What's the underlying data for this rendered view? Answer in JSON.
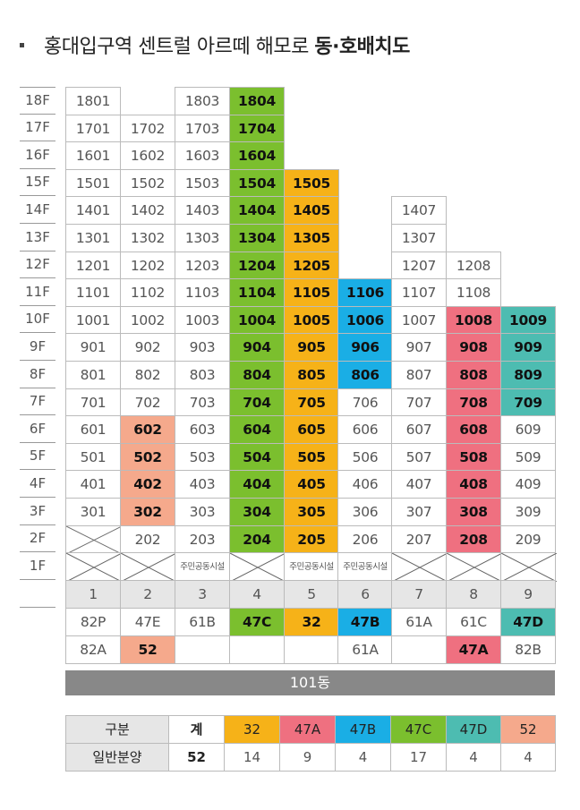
{
  "title": {
    "prefix": "홍대입구역 센트럴 아르떼 해모로 ",
    "bold": "동·호배치도"
  },
  "colors": {
    "c47C": "#7bbf2e",
    "c32": "#f6b218",
    "c47B": "#1aaee5",
    "c47A": "#ef7080",
    "c47D": "#4dbcb1",
    "c52": "#f5a98c",
    "gray": "#e6e6e6",
    "bar": "#888888"
  },
  "floors": [
    "18F",
    "17F",
    "16F",
    "15F",
    "14F",
    "13F",
    "12F",
    "11F",
    "10F",
    "9F",
    "8F",
    "7F",
    "6F",
    "5F",
    "4F",
    "3F",
    "2F",
    "1F"
  ],
  "grid": [
    [
      {
        "t": "1801"
      },
      null,
      {
        "t": "1803"
      },
      {
        "t": "1804",
        "c": "c47C"
      },
      null,
      null,
      null,
      null,
      null
    ],
    [
      {
        "t": "1701"
      },
      {
        "t": "1702"
      },
      {
        "t": "1703"
      },
      {
        "t": "1704",
        "c": "c47C"
      },
      null,
      null,
      null,
      null,
      null
    ],
    [
      {
        "t": "1601"
      },
      {
        "t": "1602"
      },
      {
        "t": "1603"
      },
      {
        "t": "1604",
        "c": "c47C"
      },
      null,
      null,
      null,
      null,
      null
    ],
    [
      {
        "t": "1501"
      },
      {
        "t": "1502"
      },
      {
        "t": "1503"
      },
      {
        "t": "1504",
        "c": "c47C"
      },
      {
        "t": "1505",
        "c": "c32"
      },
      null,
      null,
      null,
      null
    ],
    [
      {
        "t": "1401"
      },
      {
        "t": "1402"
      },
      {
        "t": "1403"
      },
      {
        "t": "1404",
        "c": "c47C"
      },
      {
        "t": "1405",
        "c": "c32"
      },
      null,
      {
        "t": "1407"
      },
      null,
      null
    ],
    [
      {
        "t": "1301"
      },
      {
        "t": "1302"
      },
      {
        "t": "1303"
      },
      {
        "t": "1304",
        "c": "c47C"
      },
      {
        "t": "1305",
        "c": "c32"
      },
      null,
      {
        "t": "1307"
      },
      null,
      null
    ],
    [
      {
        "t": "1201"
      },
      {
        "t": "1202"
      },
      {
        "t": "1203"
      },
      {
        "t": "1204",
        "c": "c47C"
      },
      {
        "t": "1205",
        "c": "c32"
      },
      null,
      {
        "t": "1207"
      },
      {
        "t": "1208"
      },
      null
    ],
    [
      {
        "t": "1101"
      },
      {
        "t": "1102"
      },
      {
        "t": "1103"
      },
      {
        "t": "1104",
        "c": "c47C"
      },
      {
        "t": "1105",
        "c": "c32"
      },
      {
        "t": "1106",
        "c": "c47B"
      },
      {
        "t": "1107"
      },
      {
        "t": "1108"
      },
      null
    ],
    [
      {
        "t": "1001"
      },
      {
        "t": "1002"
      },
      {
        "t": "1003"
      },
      {
        "t": "1004",
        "c": "c47C"
      },
      {
        "t": "1005",
        "c": "c32"
      },
      {
        "t": "1006",
        "c": "c47B"
      },
      {
        "t": "1007"
      },
      {
        "t": "1008",
        "c": "c47A"
      },
      {
        "t": "1009",
        "c": "c47D"
      }
    ],
    [
      {
        "t": "901"
      },
      {
        "t": "902"
      },
      {
        "t": "903"
      },
      {
        "t": "904",
        "c": "c47C"
      },
      {
        "t": "905",
        "c": "c32"
      },
      {
        "t": "906",
        "c": "c47B"
      },
      {
        "t": "907"
      },
      {
        "t": "908",
        "c": "c47A"
      },
      {
        "t": "909",
        "c": "c47D"
      }
    ],
    [
      {
        "t": "801"
      },
      {
        "t": "802"
      },
      {
        "t": "803"
      },
      {
        "t": "804",
        "c": "c47C"
      },
      {
        "t": "805",
        "c": "c32"
      },
      {
        "t": "806",
        "c": "c47B"
      },
      {
        "t": "807"
      },
      {
        "t": "808",
        "c": "c47A"
      },
      {
        "t": "809",
        "c": "c47D"
      }
    ],
    [
      {
        "t": "701"
      },
      {
        "t": "702"
      },
      {
        "t": "703"
      },
      {
        "t": "704",
        "c": "c47C"
      },
      {
        "t": "705",
        "c": "c32"
      },
      {
        "t": "706"
      },
      {
        "t": "707"
      },
      {
        "t": "708",
        "c": "c47A"
      },
      {
        "t": "709",
        "c": "c47D"
      }
    ],
    [
      {
        "t": "601"
      },
      {
        "t": "602",
        "c": "c52"
      },
      {
        "t": "603"
      },
      {
        "t": "604",
        "c": "c47C"
      },
      {
        "t": "605",
        "c": "c32"
      },
      {
        "t": "606"
      },
      {
        "t": "607"
      },
      {
        "t": "608",
        "c": "c47A"
      },
      {
        "t": "609"
      }
    ],
    [
      {
        "t": "501"
      },
      {
        "t": "502",
        "c": "c52"
      },
      {
        "t": "503"
      },
      {
        "t": "504",
        "c": "c47C"
      },
      {
        "t": "505",
        "c": "c32"
      },
      {
        "t": "506"
      },
      {
        "t": "507"
      },
      {
        "t": "508",
        "c": "c47A"
      },
      {
        "t": "509"
      }
    ],
    [
      {
        "t": "401"
      },
      {
        "t": "402",
        "c": "c52"
      },
      {
        "t": "403"
      },
      {
        "t": "404",
        "c": "c47C"
      },
      {
        "t": "405",
        "c": "c32"
      },
      {
        "t": "406"
      },
      {
        "t": "407"
      },
      {
        "t": "408",
        "c": "c47A"
      },
      {
        "t": "409"
      }
    ],
    [
      {
        "t": "301"
      },
      {
        "t": "302",
        "c": "c52"
      },
      {
        "t": "303"
      },
      {
        "t": "304",
        "c": "c47C"
      },
      {
        "t": "305",
        "c": "c32"
      },
      {
        "t": "306"
      },
      {
        "t": "307"
      },
      {
        "t": "308",
        "c": "c47A"
      },
      {
        "t": "309"
      }
    ],
    [
      {
        "x": true
      },
      {
        "t": "202"
      },
      {
        "t": "203"
      },
      {
        "t": "204",
        "c": "c47C"
      },
      {
        "t": "205",
        "c": "c32"
      },
      {
        "t": "206"
      },
      {
        "t": "207"
      },
      {
        "t": "208",
        "c": "c47A"
      },
      {
        "t": "209"
      }
    ],
    [
      {
        "x": true
      },
      {
        "x": true
      },
      {
        "t": "주민공동시설",
        "s": true
      },
      {
        "x": true
      },
      {
        "t": "주민공동시설",
        "s": true
      },
      {
        "t": "주민공동시설",
        "s": true
      },
      {
        "x": true
      },
      {
        "x": true
      },
      {
        "x": true
      }
    ]
  ],
  "lines": [
    "1",
    "2",
    "3",
    "4",
    "5",
    "6",
    "7",
    "8",
    "9"
  ],
  "types_row1": [
    {
      "t": "82P"
    },
    {
      "t": "47E"
    },
    {
      "t": "61B"
    },
    {
      "t": "47C",
      "c": "c47C"
    },
    {
      "t": "32",
      "c": "c32"
    },
    {
      "t": "47B",
      "c": "c47B"
    },
    {
      "t": "61A"
    },
    {
      "t": "61C"
    },
    {
      "t": "47D",
      "c": "c47D"
    }
  ],
  "types_row2": [
    {
      "t": "82A"
    },
    {
      "t": "52",
      "c": "c52"
    },
    {
      "t": ""
    },
    {
      "t": ""
    },
    {
      "t": ""
    },
    {
      "t": "61A"
    },
    {
      "t": ""
    },
    {
      "t": "47A",
      "c": "c47A"
    },
    {
      "t": "82B"
    }
  ],
  "building": "101동",
  "legend": {
    "header": [
      {
        "t": "구분"
      },
      {
        "t": "계"
      },
      {
        "t": "32",
        "c": "c32"
      },
      {
        "t": "47A",
        "c": "c47A"
      },
      {
        "t": "47B",
        "c": "c47B"
      },
      {
        "t": "47C",
        "c": "c47C"
      },
      {
        "t": "47D",
        "c": "c47D"
      },
      {
        "t": "52",
        "c": "c52"
      }
    ],
    "row": [
      {
        "t": "일반분양"
      },
      {
        "t": "52"
      },
      {
        "t": "14"
      },
      {
        "t": "9"
      },
      {
        "t": "4"
      },
      {
        "t": "17"
      },
      {
        "t": "4"
      },
      {
        "t": "4"
      }
    ]
  }
}
